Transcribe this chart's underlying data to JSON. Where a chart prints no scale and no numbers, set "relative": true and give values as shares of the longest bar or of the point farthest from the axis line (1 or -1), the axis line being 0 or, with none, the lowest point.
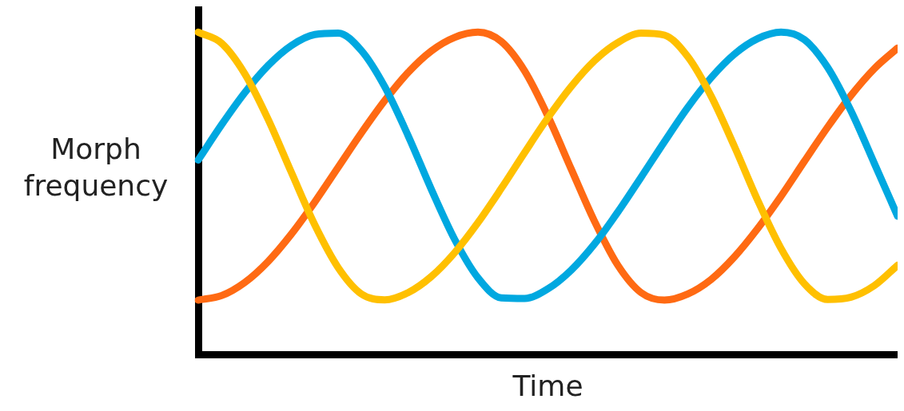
{
  "chart_data": {
    "type": "line",
    "xlabel": "Time",
    "ylabel": "Morph frequency",
    "relative": true,
    "grid": false,
    "legend": false,
    "marker": "none",
    "line_style": "solid",
    "categories": [
      null,
      null,
      null,
      null,
      null,
      null,
      null,
      null,
      null,
      null,
      null,
      null,
      null,
      null,
      null,
      null,
      null,
      null,
      null,
      null,
      null,
      null,
      null,
      null,
      null,
      null,
      null,
      null,
      null,
      null,
      null
    ],
    "series": [
      {
        "color": "#ffc000",
        "values": [
          1.0,
          0.966,
          0.871,
          0.73,
          0.565,
          0.403,
          0.271,
          0.189,
          0.171,
          0.193,
          0.243,
          0.317,
          0.41,
          0.516,
          0.627,
          0.735,
          0.832,
          0.912,
          0.968,
          0.997,
          0.991,
          0.924,
          0.802,
          0.646,
          0.479,
          0.33,
          0.221,
          0.172,
          0.179,
          0.215,
          0.278
        ]
      },
      {
        "color": "#00a8e0",
        "values": [
          0.604,
          0.713,
          0.813,
          0.897,
          0.959,
          0.993,
          0.997,
          0.943,
          0.831,
          0.68,
          0.513,
          0.358,
          0.239,
          0.177,
          0.175,
          0.205,
          0.263,
          0.344,
          0.443,
          0.551,
          0.661,
          0.767,
          0.859,
          0.932,
          0.98,
          1.0,
          0.977,
          0.891,
          0.756,
          0.594,
          0.43
        ]
      },
      {
        "color": "#ff6a13",
        "values": [
          0.17,
          0.184,
          0.225,
          0.29,
          0.375,
          0.474,
          0.581,
          0.688,
          0.788,
          0.875,
          0.942,
          0.984,
          1.0,
          0.971,
          0.88,
          0.74,
          0.576,
          0.414,
          0.278,
          0.193,
          0.17,
          0.189,
          0.234,
          0.304,
          0.392,
          0.492,
          0.6,
          0.706,
          0.804,
          0.887,
          0.951
        ]
      }
    ]
  }
}
